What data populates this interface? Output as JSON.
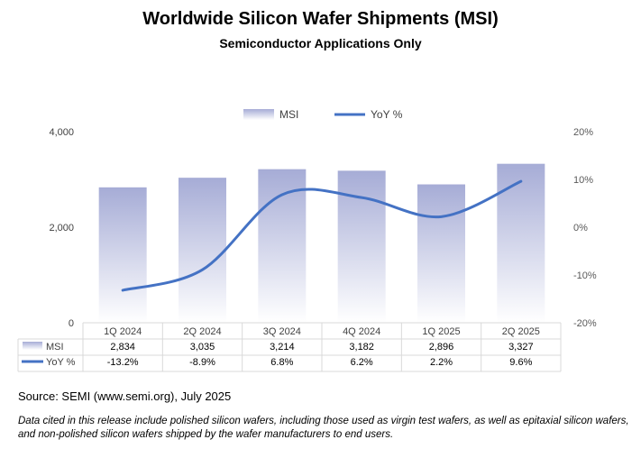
{
  "header": {
    "title": "Worldwide Silicon Wafer Shipments (MSI)",
    "subtitle": "Semiconductor Applications Only"
  },
  "footer": {
    "source": "Source: SEMI (www.semi.org), July 2025",
    "note": "Data cited in this release include polished silicon wafers, including those used as virgin test wafers, as well as epitaxial silicon wafers, and non-polished silicon wafers shipped by the wafer manufacturers to end users."
  },
  "colors": {
    "bar_top": "#a6acd6",
    "bar_bottom": "#ffffff",
    "line": "#4472c4",
    "grid": "#d9d9d9",
    "axis_text": "#595959"
  },
  "chart_data": {
    "type": "bar",
    "title": "Worldwide Silicon Wafer Shipments (MSI)",
    "subtitle": "Semiconductor Applications Only",
    "categories": [
      "1Q 2024",
      "2Q 2024",
      "3Q 2024",
      "4Q 2024",
      "1Q 2025",
      "2Q 2025"
    ],
    "series": [
      {
        "name": "MSI",
        "type": "bar",
        "axis": "left",
        "values": [
          2834,
          3035,
          3214,
          3182,
          2896,
          3327
        ],
        "labels": [
          "2,834",
          "3,035",
          "3,214",
          "3,182",
          "2,896",
          "3,327"
        ]
      },
      {
        "name": "YoY %",
        "type": "line",
        "axis": "right",
        "values": [
          -13.2,
          -8.9,
          6.8,
          6.2,
          2.2,
          9.6
        ],
        "labels": [
          "-13.2%",
          "-8.9%",
          "6.8%",
          "6.2%",
          "2.2%",
          "9.6%"
        ]
      }
    ],
    "y_left": {
      "ylim": [
        0,
        4000
      ],
      "ticks": [
        0,
        2000,
        4000
      ],
      "tick_labels": [
        "0",
        "2,000",
        "4,000"
      ]
    },
    "y_right": {
      "ylim": [
        -20,
        20
      ],
      "ticks": [
        -20,
        -10,
        0,
        10,
        20
      ],
      "tick_labels": [
        "-20%",
        "-10%",
        "0%",
        "10%",
        "20%"
      ]
    },
    "legend": {
      "placement": "top-center",
      "entries": [
        "MSI",
        "YoY %"
      ]
    },
    "grid": false,
    "data_table": true
  }
}
